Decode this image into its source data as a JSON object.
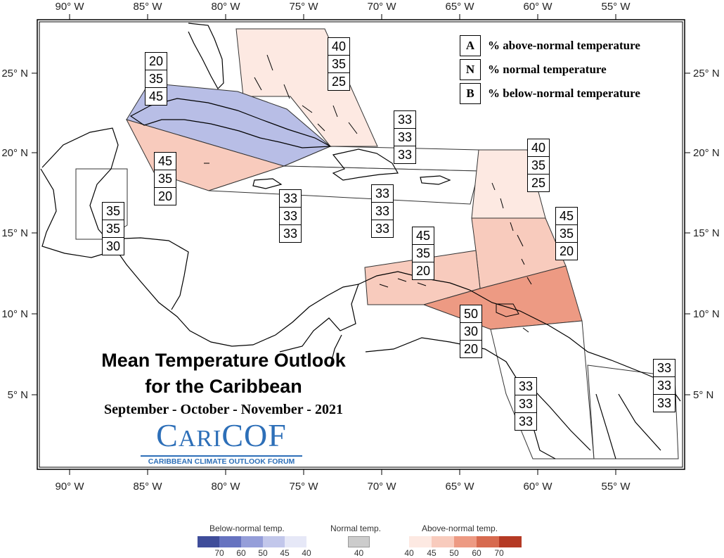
{
  "map": {
    "lon_labels": [
      "90° W",
      "85° W",
      "80° W",
      "75° W",
      "70° W",
      "65° W",
      "60° W",
      "55° W"
    ],
    "lat_labels": [
      "25° N",
      "20° N",
      "15° N",
      "10° N",
      "5° N"
    ],
    "colors": {
      "below_45": "#b8bee6",
      "above_40": "#fde9e2",
      "above_45": "#f8cbbd",
      "above_50": "#ed9a83",
      "land_outline": "#000000"
    }
  },
  "key": {
    "rows": [
      {
        "letter": "A",
        "text": "% above-normal temperature"
      },
      {
        "letter": "N",
        "text": "% normal temperature"
      },
      {
        "letter": "B",
        "text": "% below-normal temperature"
      }
    ]
  },
  "probability_boxes": [
    {
      "region": "bahamas",
      "values": [
        "40",
        "35",
        "25"
      ]
    },
    {
      "region": "cuba",
      "values": [
        "20",
        "35",
        "45"
      ]
    },
    {
      "region": "cayman-jamaica-west",
      "values": [
        "45",
        "35",
        "20"
      ]
    },
    {
      "region": "belize-honduras",
      "values": [
        "35",
        "35",
        "30"
      ]
    },
    {
      "region": "jamaica-south",
      "values": [
        "33",
        "33",
        "33"
      ]
    },
    {
      "region": "hispaniola-south",
      "values": [
        "33",
        "33",
        "33"
      ]
    },
    {
      "region": "hispaniola-north",
      "values": [
        "33",
        "33",
        "33"
      ]
    },
    {
      "region": "leeward-islands",
      "values": [
        "40",
        "35",
        "25"
      ]
    },
    {
      "region": "windward-islands",
      "values": [
        "45",
        "35",
        "20"
      ]
    },
    {
      "region": "abc-islands",
      "values": [
        "45",
        "35",
        "20"
      ]
    },
    {
      "region": "trinidad",
      "values": [
        "50",
        "30",
        "20"
      ]
    },
    {
      "region": "guyana",
      "values": [
        "33",
        "33",
        "33"
      ]
    },
    {
      "region": "suriname-french-guiana",
      "values": [
        "33",
        "33",
        "33"
      ]
    }
  ],
  "title": {
    "line1": "Mean Temperature Outlook",
    "line2": "for the Caribbean",
    "period": "September - October - November - 2021"
  },
  "logo": {
    "main_big1": "C",
    "main_small": "ARI",
    "main_big2": "COF",
    "sub": "CARIBBEAN CLIMATE OUTLOOK FORUM"
  },
  "legend": {
    "below": {
      "label": "Below-normal temp.",
      "ticks": [
        "70",
        "60",
        "50",
        "45",
        "40"
      ],
      "colors": [
        "#3f4d9a",
        "#6673c0",
        "#959ed9",
        "#c2c7eb",
        "#e6e8f7"
      ]
    },
    "normal": {
      "label": "Normal temp.",
      "ticks": [
        "40"
      ],
      "colors": [
        "#cccccc"
      ]
    },
    "above": {
      "label": "Above-normal temp.",
      "ticks": [
        "40",
        "45",
        "50",
        "60",
        "70"
      ],
      "colors": [
        "#fde9e2",
        "#f8cbbd",
        "#ed9a83",
        "#d76a4f",
        "#b53a25"
      ]
    }
  }
}
